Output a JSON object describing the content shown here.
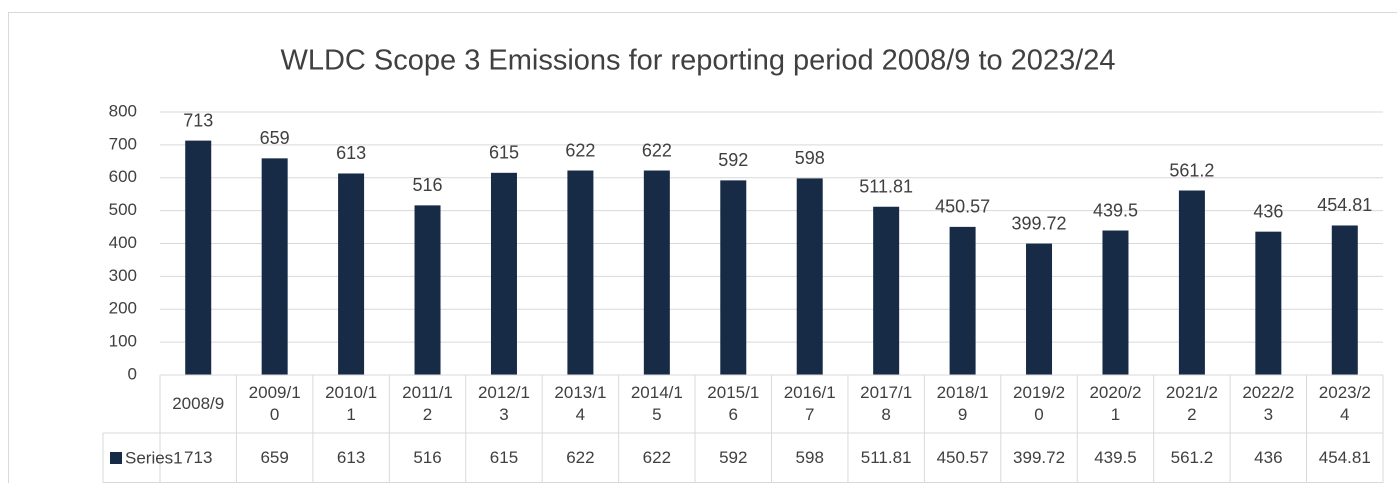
{
  "chart_data": {
    "type": "bar",
    "title": "WLDC Scope 3 Emissions for reporting period 2008/9 to 2023/24",
    "categories": [
      "2008/9",
      "2009/10",
      "2010/11",
      "2011/12",
      "2012/13",
      "2013/14",
      "2014/15",
      "2015/16",
      "2016/17",
      "2017/18",
      "2018/19",
      "2019/20",
      "2020/21",
      "2021/22",
      "2022/23",
      "2023/24"
    ],
    "series": [
      {
        "name": "Series1",
        "color": "#172a46",
        "values": [
          713,
          659,
          613,
          516,
          615,
          622,
          622,
          592,
          598,
          511.81,
          450.57,
          399.72,
          439.5,
          561.2,
          436,
          454.81
        ]
      }
    ],
    "ylim": [
      0,
      800
    ],
    "yticks": [
      0,
      100,
      200,
      300,
      400,
      500,
      600,
      700,
      800
    ],
    "grid": true
  }
}
